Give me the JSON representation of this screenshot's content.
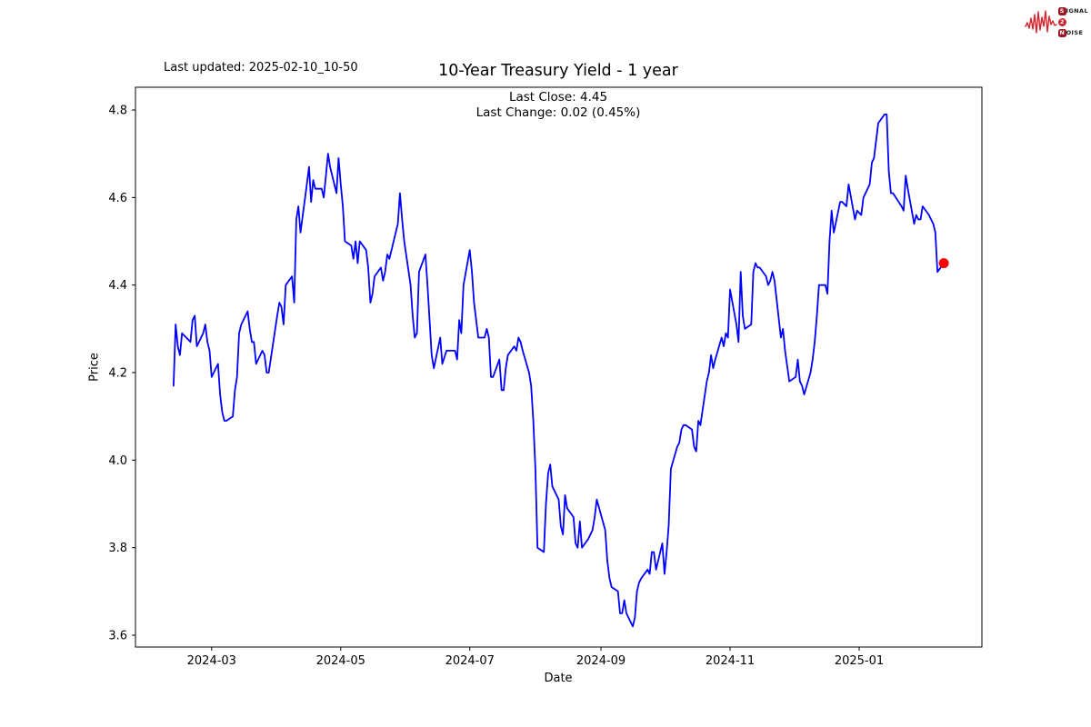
{
  "annotations": {
    "last_updated": "Last updated: 2025-02-10_10-50"
  },
  "logo": {
    "signal_initial": "S",
    "signal_rest": "IGNAL",
    "middle": "2",
    "noise_initial": "N",
    "noise_rest": "OISE",
    "waveform_color": "#d8232a"
  },
  "chart_data": {
    "type": "line",
    "title": "10-Year Treasury Yield - 1 year",
    "subtitle_close": "Last Close: 4.45",
    "subtitle_change": "Last Change: 0.02 (0.45%)",
    "xlabel": "Date",
    "ylabel": "Price",
    "grid": false,
    "legend": null,
    "line_color": "#0000ff",
    "last_point": {
      "date": "2025-02-10",
      "value": 4.45,
      "color": "#ff0000"
    },
    "xlim": [
      "2024-01-25",
      "2025-02-28"
    ],
    "ylim": [
      3.573,
      4.852
    ],
    "y_ticks": [
      "3.6",
      "3.8",
      "4.0",
      "4.2",
      "4.4",
      "4.6",
      "4.8"
    ],
    "x_ticks": [
      {
        "date": "2024-03-01",
        "label": "2024-03"
      },
      {
        "date": "2024-05-01",
        "label": "2024-05"
      },
      {
        "date": "2024-07-01",
        "label": "2024-07"
      },
      {
        "date": "2024-09-01",
        "label": "2024-09"
      },
      {
        "date": "2024-11-01",
        "label": "2024-11"
      },
      {
        "date": "2025-01-01",
        "label": "2025-01"
      }
    ],
    "points": [
      [
        "2024-02-12",
        4.17
      ],
      [
        "2024-02-13",
        4.31
      ],
      [
        "2024-02-14",
        4.26
      ],
      [
        "2024-02-15",
        4.24
      ],
      [
        "2024-02-16",
        4.29
      ],
      [
        "2024-02-20",
        4.27
      ],
      [
        "2024-02-21",
        4.32
      ],
      [
        "2024-02-22",
        4.33
      ],
      [
        "2024-02-23",
        4.26
      ],
      [
        "2024-02-26",
        4.29
      ],
      [
        "2024-02-27",
        4.31
      ],
      [
        "2024-02-28",
        4.27
      ],
      [
        "2024-02-29",
        4.25
      ],
      [
        "2024-03-01",
        4.19
      ],
      [
        "2024-03-04",
        4.22
      ],
      [
        "2024-03-05",
        4.15
      ],
      [
        "2024-03-06",
        4.11
      ],
      [
        "2024-03-07",
        4.09
      ],
      [
        "2024-03-08",
        4.09
      ],
      [
        "2024-03-11",
        4.1
      ],
      [
        "2024-03-12",
        4.16
      ],
      [
        "2024-03-13",
        4.19
      ],
      [
        "2024-03-14",
        4.29
      ],
      [
        "2024-03-15",
        4.31
      ],
      [
        "2024-03-18",
        4.34
      ],
      [
        "2024-03-19",
        4.3
      ],
      [
        "2024-03-20",
        4.27
      ],
      [
        "2024-03-21",
        4.27
      ],
      [
        "2024-03-22",
        4.22
      ],
      [
        "2024-03-25",
        4.25
      ],
      [
        "2024-03-26",
        4.24
      ],
      [
        "2024-03-27",
        4.2
      ],
      [
        "2024-03-28",
        4.2
      ],
      [
        "2024-04-01",
        4.33
      ],
      [
        "2024-04-02",
        4.36
      ],
      [
        "2024-04-03",
        4.35
      ],
      [
        "2024-04-04",
        4.31
      ],
      [
        "2024-04-05",
        4.4
      ],
      [
        "2024-04-08",
        4.42
      ],
      [
        "2024-04-09",
        4.36
      ],
      [
        "2024-04-10",
        4.55
      ],
      [
        "2024-04-11",
        4.58
      ],
      [
        "2024-04-12",
        4.52
      ],
      [
        "2024-04-15",
        4.63
      ],
      [
        "2024-04-16",
        4.67
      ],
      [
        "2024-04-17",
        4.59
      ],
      [
        "2024-04-18",
        4.64
      ],
      [
        "2024-04-19",
        4.62
      ],
      [
        "2024-04-22",
        4.62
      ],
      [
        "2024-04-23",
        4.6
      ],
      [
        "2024-04-24",
        4.65
      ],
      [
        "2024-04-25",
        4.7
      ],
      [
        "2024-04-26",
        4.67
      ],
      [
        "2024-04-29",
        4.61
      ],
      [
        "2024-04-30",
        4.69
      ],
      [
        "2024-05-01",
        4.63
      ],
      [
        "2024-05-02",
        4.58
      ],
      [
        "2024-05-03",
        4.5
      ],
      [
        "2024-05-06",
        4.49
      ],
      [
        "2024-05-07",
        4.46
      ],
      [
        "2024-05-08",
        4.5
      ],
      [
        "2024-05-09",
        4.45
      ],
      [
        "2024-05-10",
        4.5
      ],
      [
        "2024-05-13",
        4.48
      ],
      [
        "2024-05-14",
        4.44
      ],
      [
        "2024-05-15",
        4.36
      ],
      [
        "2024-05-16",
        4.38
      ],
      [
        "2024-05-17",
        4.42
      ],
      [
        "2024-05-20",
        4.44
      ],
      [
        "2024-05-21",
        4.41
      ],
      [
        "2024-05-22",
        4.43
      ],
      [
        "2024-05-23",
        4.47
      ],
      [
        "2024-05-24",
        4.46
      ],
      [
        "2024-05-28",
        4.54
      ],
      [
        "2024-05-29",
        4.61
      ],
      [
        "2024-05-30",
        4.55
      ],
      [
        "2024-05-31",
        4.5
      ],
      [
        "2024-06-03",
        4.4
      ],
      [
        "2024-06-04",
        4.33
      ],
      [
        "2024-06-05",
        4.28
      ],
      [
        "2024-06-06",
        4.29
      ],
      [
        "2024-06-07",
        4.43
      ],
      [
        "2024-06-10",
        4.47
      ],
      [
        "2024-06-11",
        4.4
      ],
      [
        "2024-06-12",
        4.32
      ],
      [
        "2024-06-13",
        4.24
      ],
      [
        "2024-06-14",
        4.21
      ],
      [
        "2024-06-17",
        4.28
      ],
      [
        "2024-06-18",
        4.22
      ],
      [
        "2024-06-20",
        4.25
      ],
      [
        "2024-06-21",
        4.25
      ],
      [
        "2024-06-24",
        4.25
      ],
      [
        "2024-06-25",
        4.23
      ],
      [
        "2024-06-26",
        4.32
      ],
      [
        "2024-06-27",
        4.29
      ],
      [
        "2024-06-28",
        4.4
      ],
      [
        "2024-07-01",
        4.48
      ],
      [
        "2024-07-02",
        4.43
      ],
      [
        "2024-07-03",
        4.36
      ],
      [
        "2024-07-05",
        4.28
      ],
      [
        "2024-07-08",
        4.28
      ],
      [
        "2024-07-09",
        4.3
      ],
      [
        "2024-07-10",
        4.28
      ],
      [
        "2024-07-11",
        4.19
      ],
      [
        "2024-07-12",
        4.19
      ],
      [
        "2024-07-15",
        4.23
      ],
      [
        "2024-07-16",
        4.16
      ],
      [
        "2024-07-17",
        4.16
      ],
      [
        "2024-07-18",
        4.21
      ],
      [
        "2024-07-19",
        4.24
      ],
      [
        "2024-07-22",
        4.26
      ],
      [
        "2024-07-23",
        4.25
      ],
      [
        "2024-07-24",
        4.28
      ],
      [
        "2024-07-25",
        4.27
      ],
      [
        "2024-07-26",
        4.25
      ],
      [
        "2024-07-29",
        4.2
      ],
      [
        "2024-07-30",
        4.17
      ],
      [
        "2024-07-31",
        4.09
      ],
      [
        "2024-08-01",
        3.98
      ],
      [
        "2024-08-02",
        3.8
      ],
      [
        "2024-08-05",
        3.79
      ],
      [
        "2024-08-06",
        3.9
      ],
      [
        "2024-08-07",
        3.97
      ],
      [
        "2024-08-08",
        3.99
      ],
      [
        "2024-08-09",
        3.94
      ],
      [
        "2024-08-12",
        3.91
      ],
      [
        "2024-08-13",
        3.85
      ],
      [
        "2024-08-14",
        3.83
      ],
      [
        "2024-08-15",
        3.92
      ],
      [
        "2024-08-16",
        3.89
      ],
      [
        "2024-08-19",
        3.87
      ],
      [
        "2024-08-20",
        3.81
      ],
      [
        "2024-08-21",
        3.8
      ],
      [
        "2024-08-22",
        3.86
      ],
      [
        "2024-08-23",
        3.8
      ],
      [
        "2024-08-26",
        3.82
      ],
      [
        "2024-08-27",
        3.83
      ],
      [
        "2024-08-28",
        3.84
      ],
      [
        "2024-08-29",
        3.87
      ],
      [
        "2024-08-30",
        3.91
      ],
      [
        "2024-09-03",
        3.84
      ],
      [
        "2024-09-04",
        3.77
      ],
      [
        "2024-09-05",
        3.73
      ],
      [
        "2024-09-06",
        3.71
      ],
      [
        "2024-09-09",
        3.7
      ],
      [
        "2024-09-10",
        3.65
      ],
      [
        "2024-09-11",
        3.65
      ],
      [
        "2024-09-12",
        3.68
      ],
      [
        "2024-09-13",
        3.65
      ],
      [
        "2024-09-16",
        3.62
      ],
      [
        "2024-09-17",
        3.64
      ],
      [
        "2024-09-18",
        3.7
      ],
      [
        "2024-09-19",
        3.72
      ],
      [
        "2024-09-20",
        3.73
      ],
      [
        "2024-09-23",
        3.75
      ],
      [
        "2024-09-24",
        3.74
      ],
      [
        "2024-09-25",
        3.79
      ],
      [
        "2024-09-26",
        3.79
      ],
      [
        "2024-09-27",
        3.75
      ],
      [
        "2024-09-30",
        3.81
      ],
      [
        "2024-10-01",
        3.74
      ],
      [
        "2024-10-02",
        3.79
      ],
      [
        "2024-10-03",
        3.85
      ],
      [
        "2024-10-04",
        3.98
      ],
      [
        "2024-10-07",
        4.03
      ],
      [
        "2024-10-08",
        4.04
      ],
      [
        "2024-10-09",
        4.07
      ],
      [
        "2024-10-10",
        4.08
      ],
      [
        "2024-10-11",
        4.08
      ],
      [
        "2024-10-14",
        4.07
      ],
      [
        "2024-10-15",
        4.03
      ],
      [
        "2024-10-16",
        4.02
      ],
      [
        "2024-10-17",
        4.09
      ],
      [
        "2024-10-18",
        4.08
      ],
      [
        "2024-10-21",
        4.18
      ],
      [
        "2024-10-22",
        4.2
      ],
      [
        "2024-10-23",
        4.24
      ],
      [
        "2024-10-24",
        4.21
      ],
      [
        "2024-10-25",
        4.23
      ],
      [
        "2024-10-28",
        4.28
      ],
      [
        "2024-10-29",
        4.26
      ],
      [
        "2024-10-30",
        4.29
      ],
      [
        "2024-10-31",
        4.28
      ],
      [
        "2024-11-01",
        4.39
      ],
      [
        "2024-11-04",
        4.31
      ],
      [
        "2024-11-05",
        4.27
      ],
      [
        "2024-11-06",
        4.43
      ],
      [
        "2024-11-07",
        4.33
      ],
      [
        "2024-11-08",
        4.3
      ],
      [
        "2024-11-11",
        4.31
      ],
      [
        "2024-11-12",
        4.43
      ],
      [
        "2024-11-13",
        4.45
      ],
      [
        "2024-11-14",
        4.44
      ],
      [
        "2024-11-15",
        4.44
      ],
      [
        "2024-11-18",
        4.42
      ],
      [
        "2024-11-19",
        4.4
      ],
      [
        "2024-11-20",
        4.41
      ],
      [
        "2024-11-21",
        4.43
      ],
      [
        "2024-11-22",
        4.41
      ],
      [
        "2024-11-25",
        4.28
      ],
      [
        "2024-11-26",
        4.3
      ],
      [
        "2024-11-27",
        4.25
      ],
      [
        "2024-11-29",
        4.18
      ],
      [
        "2024-12-02",
        4.19
      ],
      [
        "2024-12-03",
        4.23
      ],
      [
        "2024-12-04",
        4.18
      ],
      [
        "2024-12-05",
        4.17
      ],
      [
        "2024-12-06",
        4.15
      ],
      [
        "2024-12-09",
        4.2
      ],
      [
        "2024-12-10",
        4.23
      ],
      [
        "2024-12-11",
        4.27
      ],
      [
        "2024-12-12",
        4.33
      ],
      [
        "2024-12-13",
        4.4
      ],
      [
        "2024-12-16",
        4.4
      ],
      [
        "2024-12-17",
        4.38
      ],
      [
        "2024-12-18",
        4.5
      ],
      [
        "2024-12-19",
        4.57
      ],
      [
        "2024-12-20",
        4.52
      ],
      [
        "2024-12-23",
        4.59
      ],
      [
        "2024-12-24",
        4.59
      ],
      [
        "2024-12-26",
        4.58
      ],
      [
        "2024-12-27",
        4.63
      ],
      [
        "2024-12-30",
        4.55
      ],
      [
        "2024-12-31",
        4.57
      ],
      [
        "2025-01-02",
        4.56
      ],
      [
        "2025-01-03",
        4.6
      ],
      [
        "2025-01-06",
        4.63
      ],
      [
        "2025-01-07",
        4.68
      ],
      [
        "2025-01-08",
        4.69
      ],
      [
        "2025-01-10",
        4.77
      ],
      [
        "2025-01-13",
        4.79
      ],
      [
        "2025-01-14",
        4.79
      ],
      [
        "2025-01-15",
        4.66
      ],
      [
        "2025-01-16",
        4.61
      ],
      [
        "2025-01-17",
        4.61
      ],
      [
        "2025-01-21",
        4.58
      ],
      [
        "2025-01-22",
        4.57
      ],
      [
        "2025-01-23",
        4.65
      ],
      [
        "2025-01-24",
        4.62
      ],
      [
        "2025-01-27",
        4.54
      ],
      [
        "2025-01-28",
        4.56
      ],
      [
        "2025-01-29",
        4.55
      ],
      [
        "2025-01-30",
        4.55
      ],
      [
        "2025-01-31",
        4.58
      ],
      [
        "2025-02-03",
        4.56
      ],
      [
        "2025-02-04",
        4.55
      ],
      [
        "2025-02-05",
        4.54
      ],
      [
        "2025-02-06",
        4.52
      ],
      [
        "2025-02-07",
        4.43
      ],
      [
        "2025-02-10",
        4.45
      ]
    ]
  }
}
